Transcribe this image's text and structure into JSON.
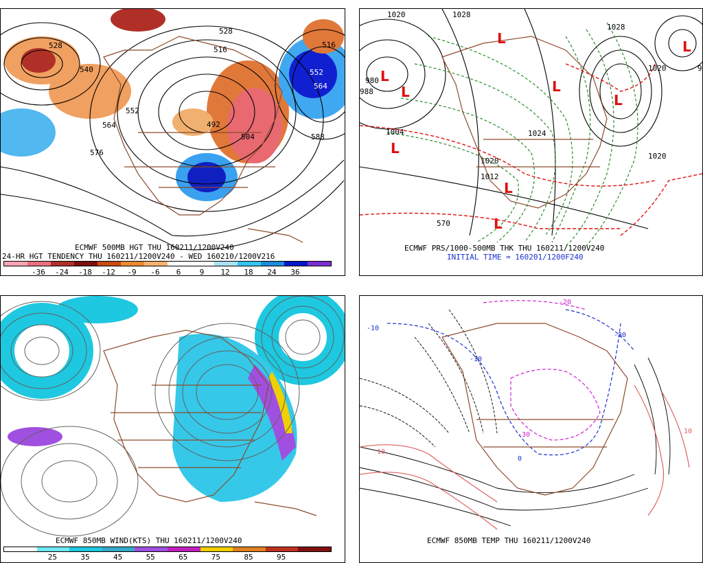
{
  "panels": {
    "tl": {
      "title1": "ECMWF 500MB HGT THU 160211/1200V240",
      "title2": "24-HR HGT TENDENCY THU 160211/1200V240 - WED 160210/1200V216",
      "contour_labels": [
        "528",
        "540",
        "552",
        "564",
        "576",
        "492",
        "504",
        "516",
        "528",
        "552",
        "564",
        "588",
        "516"
      ],
      "colorbar": {
        "colors": [
          "#f7a4b4",
          "#e8707e",
          "#b03028",
          "#7a1010",
          "#c84a10",
          "#ea8a30",
          "#f7b070",
          "#ffffff",
          "#ffffff",
          "#a8e0f5",
          "#36c4f0",
          "#1e8ad8",
          "#0018c8",
          "#7a30d0"
        ],
        "labels": [
          "-36",
          "-24",
          "-18",
          "-12",
          "-9",
          "-6",
          "6",
          "9",
          "12",
          "18",
          "24",
          "36"
        ]
      }
    },
    "tr": {
      "title1": "ECMWF PRS/1000-500MB THK THU 160211/1200V240",
      "title2": "INITIAL TIME = 160201/1200F240",
      "contour_labels": [
        "1020",
        "1028",
        "1004",
        "980",
        "988",
        "1024",
        "1020",
        "1012",
        "1028",
        "1020",
        "570",
        "1020",
        "9"
      ]
    },
    "bl": {
      "title1": "ECMWF 850MB WIND(KTS) THU 160211/1200V240",
      "colorbar": {
        "colors": [
          "#ffffff",
          "#6fe8f0",
          "#1ec8e0",
          "#36a8c8",
          "#a050e0",
          "#c020c0",
          "#f0d000",
          "#e08020",
          "#c03020",
          "#801010"
        ],
        "labels": [
          "25",
          "35",
          "45",
          "55",
          "65",
          "75",
          "85",
          "95"
        ]
      }
    },
    "br": {
      "title1": "ECMWF 850MB TEMP THU 160211/1200V240",
      "contour_labels": [
        "-10",
        "-20",
        "-30",
        "-10",
        "10",
        "10",
        "-30",
        "0"
      ]
    }
  }
}
